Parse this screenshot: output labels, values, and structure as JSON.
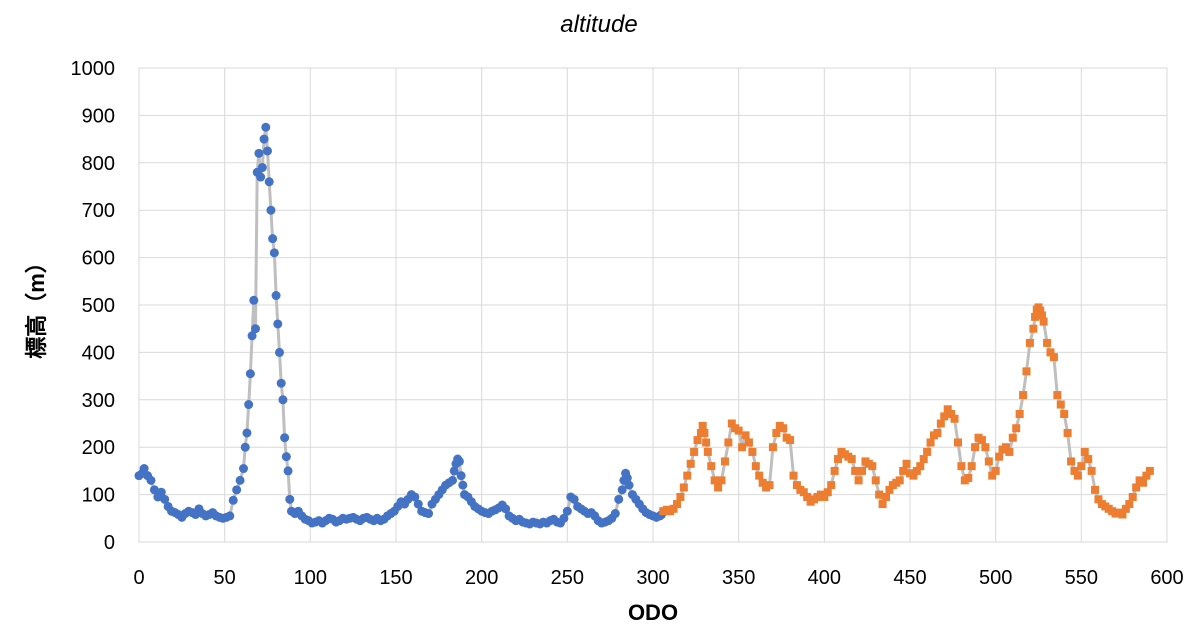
{
  "chart_data": {
    "type": "scatter",
    "title": "altitude",
    "xlabel": "ODO",
    "ylabel": "標高（m）",
    "xlim": [
      0,
      600
    ],
    "ylim": [
      0,
      1000
    ],
    "x_ticks": [
      "0",
      "50",
      "100",
      "150",
      "200",
      "250",
      "300",
      "350",
      "400",
      "450",
      "500",
      "550",
      "600"
    ],
    "y_ticks": [
      "0",
      "100",
      "200",
      "300",
      "400",
      "500",
      "600",
      "700",
      "800",
      "900",
      "1000"
    ],
    "grid": true,
    "legend": "none",
    "line_color": "#bfbfbf",
    "series": [
      {
        "marker": "circle",
        "color": "#4472c4",
        "points": [
          [
            0,
            140
          ],
          [
            2,
            145
          ],
          [
            3,
            155
          ],
          [
            5,
            140
          ],
          [
            7,
            130
          ],
          [
            9,
            110
          ],
          [
            11,
            95
          ],
          [
            13,
            105
          ],
          [
            15,
            90
          ],
          [
            17,
            75
          ],
          [
            19,
            65
          ],
          [
            21,
            62
          ],
          [
            23,
            58
          ],
          [
            25,
            52
          ],
          [
            27,
            60
          ],
          [
            29,
            65
          ],
          [
            31,
            62
          ],
          [
            33,
            58
          ],
          [
            35,
            70
          ],
          [
            37,
            60
          ],
          [
            39,
            55
          ],
          [
            41,
            58
          ],
          [
            43,
            62
          ],
          [
            45,
            55
          ],
          [
            47,
            52
          ],
          [
            49,
            50
          ],
          [
            51,
            52
          ],
          [
            53,
            55
          ],
          [
            55,
            88
          ],
          [
            57,
            110
          ],
          [
            59,
            130
          ],
          [
            61,
            155
          ],
          [
            62,
            200
          ],
          [
            63,
            230
          ],
          [
            64,
            290
          ],
          [
            65,
            355
          ],
          [
            66,
            435
          ],
          [
            67,
            510
          ],
          [
            68,
            450
          ],
          [
            69,
            780
          ],
          [
            70,
            820
          ],
          [
            71,
            770
          ],
          [
            72,
            790
          ],
          [
            73,
            850
          ],
          [
            74,
            875
          ],
          [
            75,
            825
          ],
          [
            76,
            760
          ],
          [
            77,
            700
          ],
          [
            78,
            640
          ],
          [
            79,
            610
          ],
          [
            80,
            520
          ],
          [
            81,
            460
          ],
          [
            82,
            400
          ],
          [
            83,
            335
          ],
          [
            84,
            300
          ],
          [
            85,
            220
          ],
          [
            86,
            180
          ],
          [
            87,
            150
          ],
          [
            88,
            90
          ],
          [
            89,
            65
          ],
          [
            91,
            60
          ],
          [
            93,
            65
          ],
          [
            95,
            55
          ],
          [
            97,
            48
          ],
          [
            99,
            45
          ],
          [
            101,
            40
          ],
          [
            103,
            42
          ],
          [
            105,
            45
          ],
          [
            107,
            40
          ],
          [
            109,
            45
          ],
          [
            111,
            50
          ],
          [
            113,
            48
          ],
          [
            115,
            42
          ],
          [
            117,
            45
          ],
          [
            119,
            50
          ],
          [
            121,
            48
          ],
          [
            123,
            50
          ],
          [
            125,
            52
          ],
          [
            127,
            48
          ],
          [
            129,
            45
          ],
          [
            131,
            50
          ],
          [
            133,
            52
          ],
          [
            135,
            48
          ],
          [
            137,
            45
          ],
          [
            139,
            50
          ],
          [
            141,
            45
          ],
          [
            143,
            48
          ],
          [
            145,
            55
          ],
          [
            147,
            60
          ],
          [
            149,
            65
          ],
          [
            151,
            75
          ],
          [
            153,
            85
          ],
          [
            155,
            80
          ],
          [
            157,
            90
          ],
          [
            159,
            100
          ],
          [
            161,
            95
          ],
          [
            163,
            80
          ],
          [
            165,
            65
          ],
          [
            167,
            62
          ],
          [
            169,
            60
          ],
          [
            171,
            80
          ],
          [
            173,
            90
          ],
          [
            175,
            100
          ],
          [
            177,
            110
          ],
          [
            179,
            120
          ],
          [
            181,
            125
          ],
          [
            183,
            130
          ],
          [
            184,
            150
          ],
          [
            185,
            165
          ],
          [
            186,
            175
          ],
          [
            187,
            170
          ],
          [
            188,
            140
          ],
          [
            189,
            120
          ],
          [
            190,
            100
          ],
          [
            192,
            95
          ],
          [
            194,
            85
          ],
          [
            196,
            75
          ],
          [
            198,
            70
          ],
          [
            200,
            65
          ],
          [
            202,
            62
          ],
          [
            204,
            60
          ],
          [
            206,
            65
          ],
          [
            208,
            68
          ],
          [
            210,
            72
          ],
          [
            212,
            78
          ],
          [
            214,
            70
          ],
          [
            216,
            55
          ],
          [
            218,
            50
          ],
          [
            220,
            45
          ],
          [
            222,
            48
          ],
          [
            224,
            42
          ],
          [
            226,
            40
          ],
          [
            228,
            38
          ],
          [
            230,
            42
          ],
          [
            232,
            40
          ],
          [
            234,
            38
          ],
          [
            236,
            42
          ],
          [
            238,
            40
          ],
          [
            240,
            45
          ],
          [
            242,
            48
          ],
          [
            244,
            42
          ],
          [
            246,
            40
          ],
          [
            248,
            50
          ],
          [
            250,
            65
          ],
          [
            252,
            95
          ],
          [
            254,
            90
          ],
          [
            256,
            75
          ],
          [
            258,
            70
          ],
          [
            260,
            65
          ],
          [
            262,
            60
          ],
          [
            264,
            62
          ],
          [
            266,
            55
          ],
          [
            268,
            45
          ],
          [
            270,
            40
          ],
          [
            272,
            42
          ],
          [
            274,
            45
          ],
          [
            276,
            50
          ],
          [
            278,
            60
          ],
          [
            280,
            90
          ],
          [
            282,
            110
          ],
          [
            283,
            130
          ],
          [
            284,
            145
          ],
          [
            285,
            135
          ],
          [
            286,
            120
          ],
          [
            288,
            100
          ],
          [
            290,
            90
          ],
          [
            292,
            80
          ],
          [
            294,
            70
          ],
          [
            296,
            62
          ],
          [
            298,
            58
          ],
          [
            300,
            55
          ],
          [
            302,
            52
          ],
          [
            304,
            55
          ],
          [
            305,
            58
          ]
        ]
      },
      {
        "marker": "square",
        "color": "#ed7d31",
        "points": [
          [
            306,
            65
          ],
          [
            308,
            68
          ],
          [
            310,
            65
          ],
          [
            312,
            70
          ],
          [
            314,
            80
          ],
          [
            316,
            95
          ],
          [
            318,
            115
          ],
          [
            320,
            140
          ],
          [
            322,
            165
          ],
          [
            324,
            190
          ],
          [
            326,
            215
          ],
          [
            328,
            230
          ],
          [
            329,
            245
          ],
          [
            330,
            230
          ],
          [
            331,
            210
          ],
          [
            332,
            190
          ],
          [
            334,
            160
          ],
          [
            336,
            130
          ],
          [
            338,
            115
          ],
          [
            340,
            130
          ],
          [
            342,
            170
          ],
          [
            344,
            210
          ],
          [
            346,
            250
          ],
          [
            348,
            240
          ],
          [
            350,
            235
          ],
          [
            352,
            200
          ],
          [
            354,
            225
          ],
          [
            356,
            210
          ],
          [
            358,
            190
          ],
          [
            360,
            160
          ],
          [
            362,
            140
          ],
          [
            364,
            125
          ],
          [
            366,
            115
          ],
          [
            368,
            120
          ],
          [
            370,
            200
          ],
          [
            372,
            230
          ],
          [
            374,
            245
          ],
          [
            376,
            240
          ],
          [
            378,
            220
          ],
          [
            380,
            215
          ],
          [
            382,
            140
          ],
          [
            384,
            120
          ],
          [
            386,
            110
          ],
          [
            388,
            105
          ],
          [
            390,
            95
          ],
          [
            392,
            85
          ],
          [
            394,
            90
          ],
          [
            396,
            95
          ],
          [
            398,
            100
          ],
          [
            400,
            95
          ],
          [
            402,
            105
          ],
          [
            404,
            120
          ],
          [
            406,
            150
          ],
          [
            408,
            175
          ],
          [
            410,
            190
          ],
          [
            412,
            185
          ],
          [
            414,
            180
          ],
          [
            416,
            175
          ],
          [
            418,
            150
          ],
          [
            420,
            130
          ],
          [
            422,
            150
          ],
          [
            424,
            170
          ],
          [
            426,
            165
          ],
          [
            428,
            160
          ],
          [
            430,
            130
          ],
          [
            432,
            100
          ],
          [
            434,
            80
          ],
          [
            436,
            95
          ],
          [
            438,
            110
          ],
          [
            440,
            120
          ],
          [
            442,
            125
          ],
          [
            444,
            130
          ],
          [
            446,
            150
          ],
          [
            448,
            165
          ],
          [
            450,
            145
          ],
          [
            452,
            140
          ],
          [
            454,
            150
          ],
          [
            456,
            160
          ],
          [
            458,
            175
          ],
          [
            460,
            190
          ],
          [
            462,
            210
          ],
          [
            464,
            225
          ],
          [
            466,
            230
          ],
          [
            468,
            250
          ],
          [
            470,
            265
          ],
          [
            472,
            280
          ],
          [
            474,
            270
          ],
          [
            476,
            260
          ],
          [
            478,
            210
          ],
          [
            480,
            160
          ],
          [
            482,
            130
          ],
          [
            484,
            135
          ],
          [
            486,
            160
          ],
          [
            488,
            200
          ],
          [
            490,
            220
          ],
          [
            492,
            215
          ],
          [
            494,
            200
          ],
          [
            496,
            170
          ],
          [
            498,
            140
          ],
          [
            500,
            150
          ],
          [
            502,
            180
          ],
          [
            504,
            195
          ],
          [
            506,
            200
          ],
          [
            508,
            190
          ],
          [
            510,
            220
          ],
          [
            512,
            240
          ],
          [
            514,
            270
          ],
          [
            516,
            310
          ],
          [
            518,
            360
          ],
          [
            520,
            420
          ],
          [
            522,
            450
          ],
          [
            523,
            475
          ],
          [
            524,
            490
          ],
          [
            525,
            495
          ],
          [
            526,
            488
          ],
          [
            527,
            478
          ],
          [
            528,
            465
          ],
          [
            530,
            420
          ],
          [
            532,
            400
          ],
          [
            534,
            390
          ],
          [
            536,
            310
          ],
          [
            538,
            290
          ],
          [
            540,
            270
          ],
          [
            542,
            230
          ],
          [
            544,
            170
          ],
          [
            546,
            150
          ],
          [
            548,
            140
          ],
          [
            550,
            160
          ],
          [
            552,
            190
          ],
          [
            554,
            175
          ],
          [
            556,
            150
          ],
          [
            558,
            110
          ],
          [
            560,
            90
          ],
          [
            562,
            80
          ],
          [
            564,
            75
          ],
          [
            566,
            70
          ],
          [
            568,
            65
          ],
          [
            570,
            60
          ],
          [
            572,
            62
          ],
          [
            574,
            58
          ],
          [
            576,
            70
          ],
          [
            578,
            80
          ],
          [
            580,
            95
          ],
          [
            582,
            115
          ],
          [
            584,
            130
          ],
          [
            586,
            125
          ],
          [
            588,
            140
          ],
          [
            590,
            150
          ]
        ]
      }
    ]
  }
}
